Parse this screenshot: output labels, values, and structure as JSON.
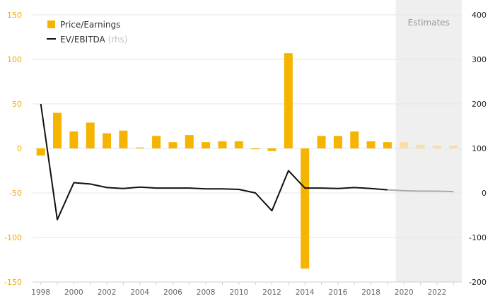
{
  "chart_data": {
    "type": "bar+line",
    "x": [
      1998,
      1999,
      2000,
      2001,
      2002,
      2003,
      2004,
      2005,
      2006,
      2007,
      2008,
      2009,
      2010,
      2011,
      2012,
      2013,
      2014,
      2015,
      2016,
      2017,
      2018,
      2019,
      2020,
      2021,
      2022,
      2023
    ],
    "x_tick_labels": [
      "1998",
      "2000",
      "2002",
      "2004",
      "2006",
      "2008",
      "2010",
      "2012",
      "2014",
      "2016",
      "2018",
      "2020",
      "2022"
    ],
    "series": [
      {
        "name": "Price/Earnings",
        "axis": "left",
        "kind": "bar",
        "color": "#f5b400",
        "estimate_color": "#f9deA0",
        "values": [
          -8,
          40,
          19,
          29,
          17,
          20,
          1,
          14,
          7,
          15,
          7,
          8,
          8,
          -1,
          -3,
          107,
          -135,
          14,
          14,
          19,
          8,
          7,
          7,
          4,
          3,
          3
        ]
      },
      {
        "name": "EV/EBITDA",
        "name_suffix": "(rhs)",
        "axis": "right",
        "kind": "line",
        "color": "#111111",
        "estimate_color": "#aaaaaa",
        "values": [
          200,
          -60,
          23,
          20,
          12,
          10,
          13,
          11,
          11,
          11,
          9,
          9,
          8,
          0,
          -40,
          50,
          11,
          11,
          10,
          12,
          10,
          7,
          5,
          4,
          4,
          3
        ]
      }
    ],
    "estimates": {
      "label": "Estimates",
      "from": 2019.5,
      "to": 2023.5,
      "shade_color": "#efefef"
    },
    "left_axis": {
      "ylim": [
        -150,
        150
      ],
      "ticks": [
        150,
        100,
        50,
        0,
        -50,
        -100,
        -150
      ],
      "color": "#f2a900"
    },
    "right_axis": {
      "ylim": [
        -200,
        400
      ],
      "ticks": [
        400,
        300,
        200,
        100,
        0,
        -100,
        -200
      ],
      "color": "#222222"
    },
    "grid": true,
    "legend_placement": "top-left",
    "title": "",
    "xlabel": "",
    "ylabel": ""
  }
}
